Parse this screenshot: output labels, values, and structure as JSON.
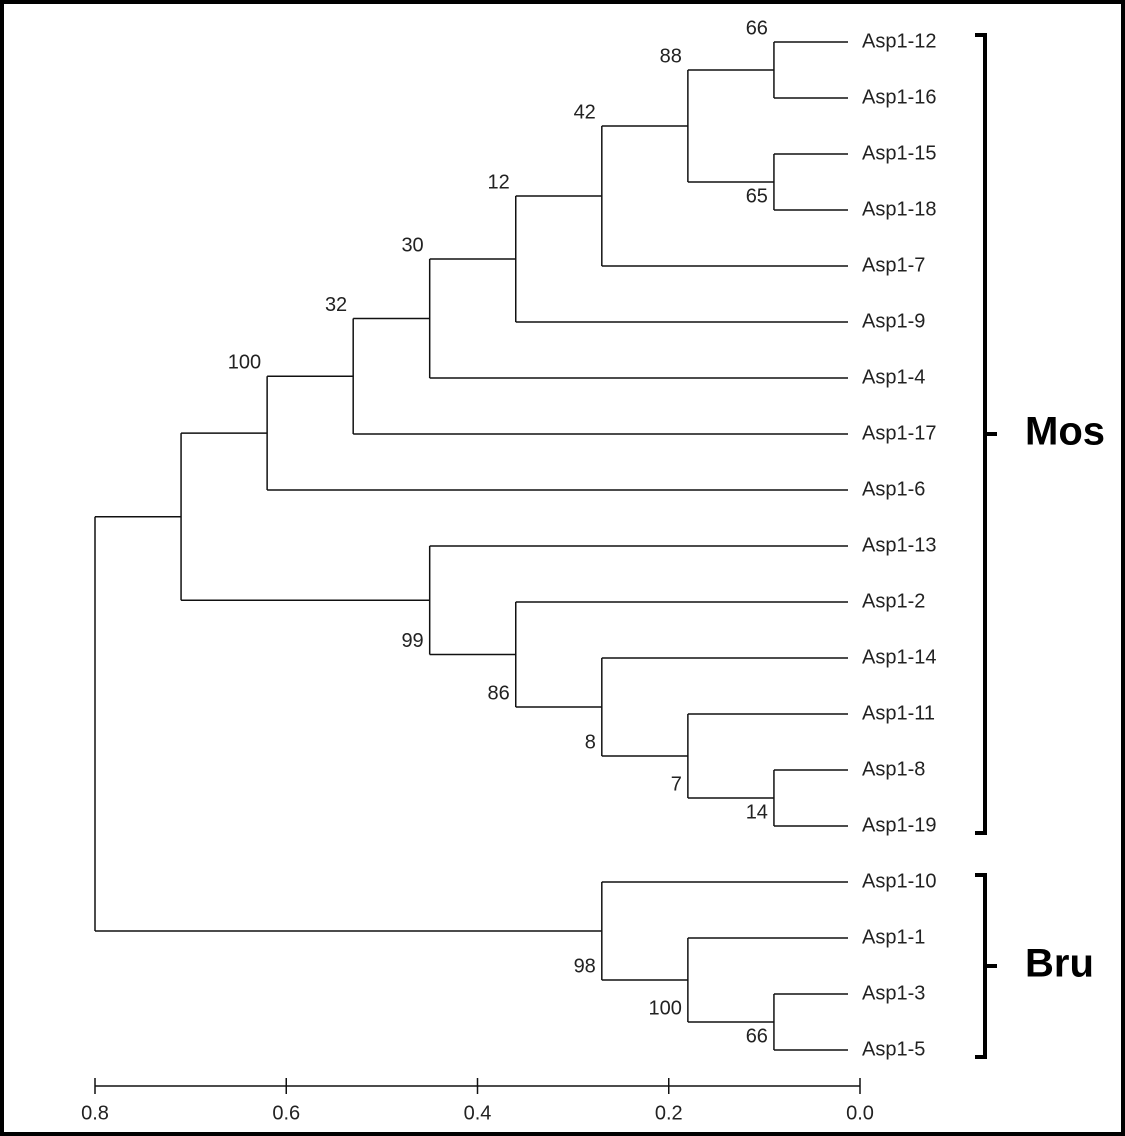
{
  "chart_data": {
    "type": "dendrogram",
    "xlim": [
      0.8,
      {
        "value": 0,
        "label": "0.0"
      }
    ],
    "xticks": [
      0.8,
      0.6,
      0.4,
      0.2,
      {
        "value": 0,
        "label": "0.0"
      }
    ],
    "tree": {
      "height": 0.8,
      "children": [
        {
          "height": 0.71,
          "group": "Mos",
          "children": [
            {
              "height": 0.62,
              "support": 100,
              "children": [
                {
                  "height": 0.53,
                  "support": 32,
                  "children": [
                    {
                      "height": 0.45,
                      "support": 30,
                      "children": [
                        {
                          "height": 0.36,
                          "support": 12,
                          "children": [
                            {
                              "height": 0.27,
                              "support": 42,
                              "children": [
                                {
                                  "height": 0.18,
                                  "support": 88,
                                  "children": [
                                    {
                                      "height": 0.09,
                                      "support": 66,
                                      "children": [
                                        {
                                          "label": "Asp1-12",
                                          "height": 0
                                        },
                                        {
                                          "label": "Asp1-16",
                                          "height": 0
                                        }
                                      ]
                                    },
                                    {
                                      "height": 0.09,
                                      "support": 65,
                                      "children": [
                                        {
                                          "label": "Asp1-15",
                                          "height": 0
                                        },
                                        {
                                          "label": "Asp1-18",
                                          "height": 0
                                        }
                                      ]
                                    }
                                  ]
                                },
                                {
                                  "label": "Asp1-7",
                                  "height": 0
                                }
                              ]
                            },
                            {
                              "label": "Asp1-9",
                              "height": 0
                            }
                          ]
                        },
                        {
                          "label": "Asp1-4",
                          "height": 0
                        }
                      ]
                    },
                    {
                      "label": "Asp1-17",
                      "height": 0
                    }
                  ]
                },
                {
                  "label": "Asp1-6",
                  "height": 0
                }
              ]
            },
            {
              "height": 0.45,
              "support": 99,
              "children": [
                {
                  "label": "Asp1-13",
                  "height": 0
                },
                {
                  "height": 0.36,
                  "support": 86,
                  "children": [
                    {
                      "label": "Asp1-2",
                      "height": 0
                    },
                    {
                      "height": 0.27,
                      "support": 8,
                      "children": [
                        {
                          "label": "Asp1-14",
                          "height": 0
                        },
                        {
                          "height": 0.18,
                          "support": 7,
                          "children": [
                            {
                              "label": "Asp1-11",
                              "height": 0
                            },
                            {
                              "height": 0.09,
                              "support": 14,
                              "children": [
                                {
                                  "label": "Asp1-8",
                                  "height": 0
                                },
                                {
                                  "label": "Asp1-19",
                                  "height": 0
                                }
                              ]
                            }
                          ]
                        }
                      ]
                    }
                  ]
                }
              ]
            }
          ]
        },
        {
          "height": 0.27,
          "support": 98,
          "group": "Bru",
          "children": [
            {
              "label": "Asp1-10",
              "height": 0
            },
            {
              "height": 0.18,
              "support": 100,
              "children": [
                {
                  "label": "Asp1-1",
                  "height": 0
                },
                {
                  "height": 0.09,
                  "support": 66,
                  "children": [
                    {
                      "label": "Asp1-3",
                      "height": 0
                    },
                    {
                      "label": "Asp1-5",
                      "height": 0
                    }
                  ]
                }
              ]
            }
          ]
        }
      ]
    }
  }
}
